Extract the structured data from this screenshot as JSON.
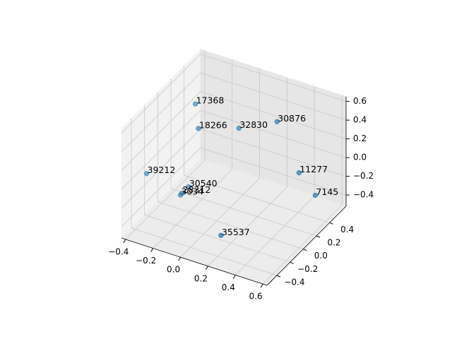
{
  "chart_data": {
    "type": "scatter3d",
    "labels": [
      "17368",
      "18266",
      "32830",
      "30876",
      "39212",
      "11277",
      "7145",
      "30540",
      "3034",
      "28312",
      "35537"
    ],
    "x": [
      -0.18,
      -0.1,
      0.08,
      0.3,
      -0.42,
      0.46,
      0.55,
      -0.23,
      -0.26,
      -0.22,
      0.18
    ],
    "y": [
      0.05,
      -0.07,
      0.17,
      0.29,
      -0.19,
      0.29,
      0.35,
      0.05,
      -0.01,
      -0.07,
      -0.31
    ],
    "z": [
      0.61,
      0.47,
      0.39,
      0.48,
      -0.08,
      0.01,
      -0.23,
      -0.3,
      -0.36,
      -0.28,
      -0.37
    ],
    "color": "#1f77b4",
    "xlim": [
      -0.43,
      0.63
    ],
    "ylim": [
      -0.55,
      0.65
    ],
    "zlim": [
      -0.52,
      0.65
    ],
    "xticks": [
      {
        "value": -0.4,
        "label": "−0.4"
      },
      {
        "value": -0.2,
        "label": "−0.2"
      },
      {
        "value": 0,
        "label": "0.0"
      },
      0.2,
      0.4,
      0.6
    ],
    "yticks": [
      {
        "value": -0.4,
        "label": "−0.4"
      },
      {
        "value": -0.2,
        "label": "−0.2"
      },
      {
        "value": 0,
        "label": "0.0"
      },
      0.2,
      0.4
    ],
    "zticks": [
      {
        "value": -0.4,
        "label": "−0.4"
      },
      {
        "value": -0.2,
        "label": "−0.2"
      },
      {
        "value": 0,
        "label": "0.0"
      },
      0.2,
      0.4,
      0.6
    ],
    "grid": true
  }
}
